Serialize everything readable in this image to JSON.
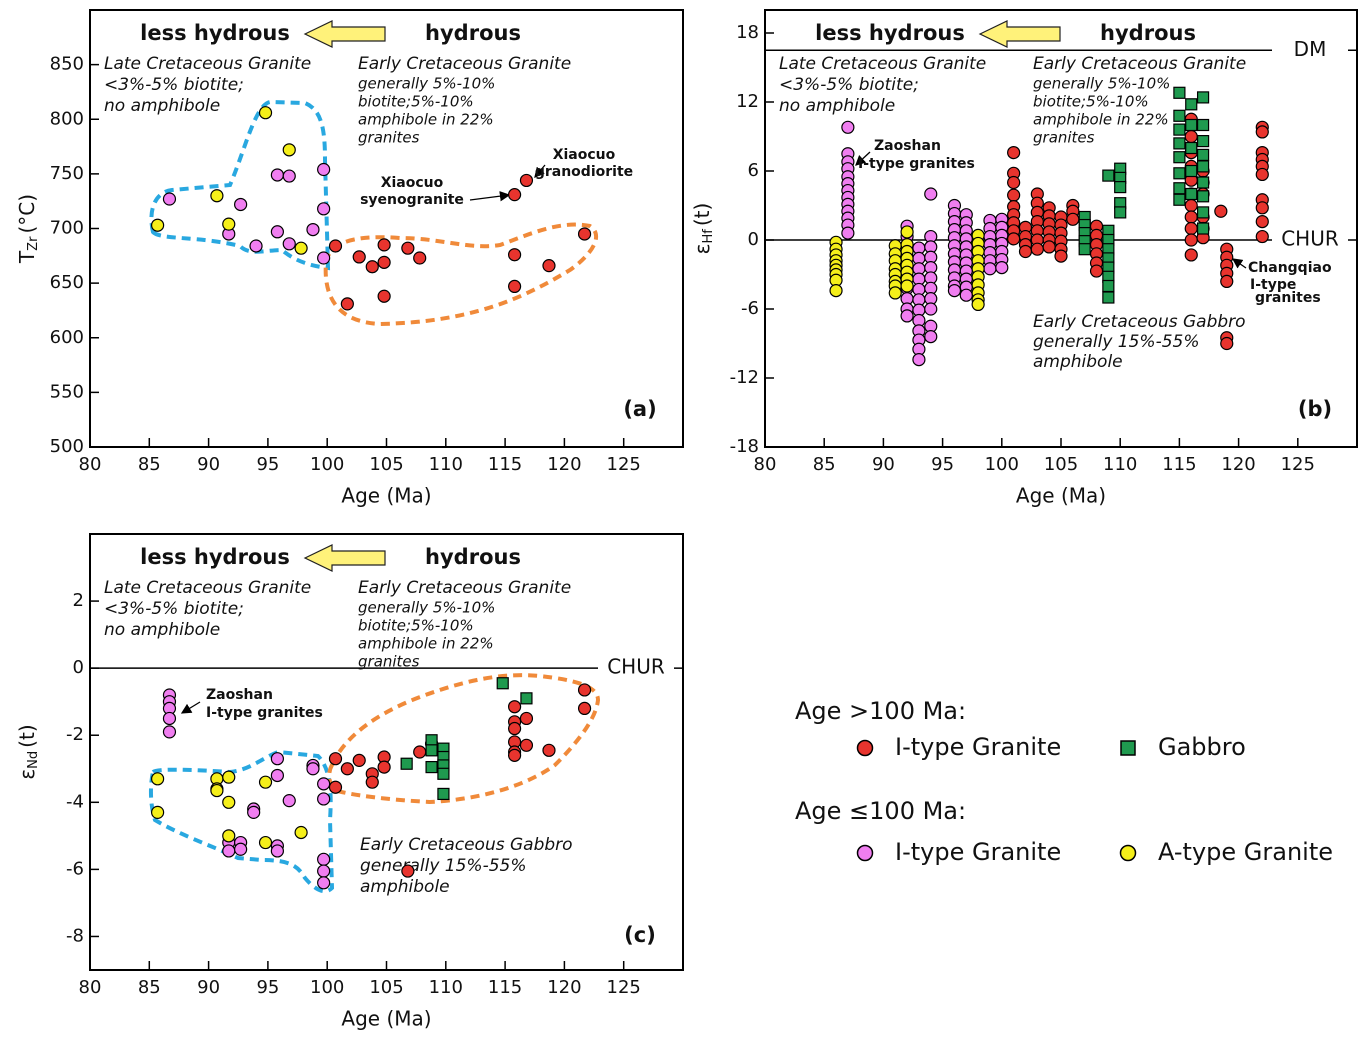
{
  "chart_data": [
    {
      "type": "scatter",
      "panel_label": "(a)",
      "xlabel": "Age (Ma)",
      "ylabel": {
        "symbol": "T",
        "subscript": "Zr",
        "unit": "(°C)"
      },
      "xlim": [
        80,
        130
      ],
      "xticks": [
        80,
        85,
        90,
        95,
        100,
        105,
        110,
        115,
        120,
        125
      ],
      "ylim": [
        500,
        900
      ],
      "yticks": [
        500,
        550,
        600,
        650,
        700,
        750,
        800,
        850
      ],
      "annotations": [
        "less hydrous",
        "hydrous",
        "Late Cretaceous Granite",
        "<3%-5% biotite;",
        "no amphibole",
        "Early Cretaceous Granite",
        "generally 5%-10%",
        "biotite;5%-10%",
        "amphibole in 22%",
        "granites",
        "Xiaocuo",
        "granodiorite",
        "Xiaocuo",
        "syenogranite"
      ],
      "series": [
        {
          "name": "I-type Granite",
          "group": "Age >100 Ma:",
          "marker": "circle",
          "color": "#e8342e",
          "x": [
            100.7,
            101.7,
            102.7,
            103.8,
            104.8,
            104.8,
            104.8,
            106.8,
            107.8,
            115.8,
            116.8,
            115.8,
            115.8,
            118.7,
            121.7
          ],
          "values": [
            684,
            631,
            674,
            665,
            685,
            669,
            638,
            682,
            673,
            731,
            744,
            676,
            647,
            666,
            695
          ]
        },
        {
          "name": "Gabbro",
          "group": "Age >100 Ma:",
          "marker": "square",
          "color": "#1f9a4f",
          "x": [],
          "values": []
        },
        {
          "name": "I-type Granite",
          "group": "Age ≤100 Ma:",
          "marker": "circle",
          "color": "#f07ef0",
          "x": [
            86.7,
            91.7,
            92.7,
            94,
            95.8,
            96.8,
            95.8,
            96.8,
            98.8,
            99.7,
            99.7,
            99.7
          ],
          "values": [
            727,
            695,
            722,
            684,
            749,
            748,
            697,
            686,
            699,
            754,
            718,
            673
          ]
        },
        {
          "name": "A-type Granite",
          "group": "Age ≤100 Ma:",
          "marker": "circle",
          "color": "#f5ef1a",
          "x": [
            85.7,
            90.7,
            91.7,
            94.8,
            96.8,
            97.8
          ],
          "values": [
            703,
            730,
            704,
            806,
            772,
            682
          ]
        }
      ]
    },
    {
      "type": "scatter",
      "panel_label": "(b)",
      "xlabel": "Age (Ma)",
      "ylabel": {
        "symbol": "ε",
        "subscript": "Hf",
        "unit": "(t)"
      },
      "xlim": [
        80,
        130
      ],
      "xticks": [
        80,
        85,
        90,
        95,
        100,
        105,
        110,
        115,
        120,
        125
      ],
      "ylim": [
        -18,
        20
      ],
      "yticks": [
        -18,
        -12,
        -6,
        0,
        6,
        12,
        18
      ],
      "ref_lines": [
        {
          "value": 16.5,
          "label": "DM"
        },
        {
          "value": 0,
          "label": "CHUR"
        }
      ],
      "annotations": [
        "less hydrous",
        "hydrous",
        "Late Cretaceous Granite",
        "<3%-5% biotite;",
        "no amphibole",
        "Early Cretaceous Granite",
        "generally 5%-10%",
        "biotite;5%-10%",
        "amphibole in 22%",
        "granites",
        "Zaoshan",
        "I-type granites",
        "Changqiao",
        "I-type",
        "granites",
        "Early Cretaceous Gabbro",
        "generally 15%-55%",
        "amphibole"
      ],
      "series": [
        {
          "marker": "circle",
          "color": "#e8342e",
          "x": [
            101,
            101,
            101,
            101,
            101,
            101,
            101,
            101,
            101,
            102,
            102,
            102,
            102,
            103,
            103,
            103,
            103,
            103,
            103,
            103,
            104,
            104,
            104,
            104,
            104,
            104,
            105,
            105,
            105,
            105,
            105,
            105,
            106,
            106,
            106,
            108,
            108,
            108,
            108,
            108,
            108,
            116,
            116,
            116,
            116,
            116,
            116,
            116,
            116,
            116,
            116,
            116,
            117,
            117,
            117,
            117,
            117,
            117,
            118.5,
            119,
            119,
            119,
            119,
            119,
            119,
            119,
            122,
            122,
            122,
            122,
            122,
            122,
            122,
            122,
            122,
            122
          ],
          "values": [
            7.6,
            5.8,
            5.0,
            3.9,
            2.9,
            2.2,
            1.5,
            0.8,
            0.1,
            1.1,
            0.3,
            -0.4,
            -1.0,
            4.0,
            3.2,
            2.4,
            1.6,
            0.8,
            0.0,
            -0.8,
            2.8,
            2.1,
            1.4,
            0.7,
            0.0,
            -0.6,
            2.0,
            1.3,
            0.6,
            -0.1,
            -0.8,
            -1.4,
            3.0,
            2.5,
            1.8,
            1.2,
            0.4,
            -0.4,
            -1.2,
            -2.0,
            -2.7,
            10.5,
            9.0,
            7.6,
            6.4,
            5.2,
            4.0,
            3.0,
            2.0,
            1.0,
            0.0,
            -1.3,
            6.0,
            5.0,
            4.0,
            2.0,
            1.0,
            0.2,
            2.5,
            -0.8,
            -1.5,
            -2.2,
            -2.9,
            -3.6,
            -8.5,
            -9.0,
            9.8,
            9.4,
            7.6,
            7.0,
            6.4,
            5.7,
            3.5,
            2.8,
            1.6,
            0.3
          ]
        },
        {
          "marker": "square",
          "color": "#1f9a4f",
          "x": [
            107,
            107,
            107,
            107,
            107,
            109,
            109,
            109,
            109,
            109,
            109,
            109,
            109,
            109,
            110,
            110,
            110,
            110,
            110,
            115,
            115,
            115,
            115,
            115,
            115,
            115,
            115,
            116,
            116,
            116,
            116,
            116,
            117,
            117,
            117,
            117,
            117,
            117,
            117,
            117,
            117
          ],
          "values": [
            2.0,
            1.3,
            0.6,
            -0.1,
            -0.8,
            5.6,
            0.8,
            0.0,
            -0.8,
            -1.6,
            -2.4,
            -3.2,
            -4.0,
            -5.0,
            6.2,
            5.4,
            4.6,
            3.2,
            2.4,
            12.8,
            10.8,
            9.6,
            8.4,
            7.2,
            5.8,
            4.5,
            3.5,
            11.8,
            10.0,
            8.0,
            6.0,
            4.0,
            12.4,
            10.0,
            8.6,
            7.4,
            6.4,
            5.0,
            3.8,
            2.4,
            1.0
          ]
        },
        {
          "marker": "circle",
          "color": "#f07ef0",
          "x": [
            87,
            87,
            87,
            87,
            87,
            87,
            87,
            87,
            87,
            87,
            87,
            87,
            87,
            92,
            92,
            92,
            92,
            92,
            92,
            92,
            92,
            92,
            92,
            93,
            93,
            93,
            93,
            93,
            93,
            93,
            93,
            93,
            93,
            93,
            93,
            94,
            94,
            94,
            94,
            94,
            94,
            94,
            94,
            94,
            94,
            94,
            96,
            96,
            96,
            96,
            96,
            96,
            96,
            96,
            96,
            96,
            96,
            96,
            97,
            97,
            97,
            97,
            97,
            97,
            97,
            97,
            97,
            97,
            97,
            99,
            99,
            99,
            99,
            99,
            99,
            99,
            100,
            100,
            100,
            100,
            100,
            100,
            100
          ],
          "values": [
            9.8,
            7.5,
            6.8,
            6.2,
            5.5,
            4.9,
            4.3,
            3.7,
            3.1,
            2.5,
            1.9,
            1.3,
            0.6,
            1.2,
            0.3,
            -0.6,
            -1.5,
            -2.4,
            -3.3,
            -4.2,
            -5.1,
            -6.0,
            -6.6,
            -0.7,
            -1.6,
            -2.5,
            -3.4,
            -4.3,
            -5.2,
            -6.1,
            -7.0,
            -7.9,
            -8.7,
            -9.5,
            -10.4,
            4.0,
            0.3,
            -0.6,
            -1.5,
            -2.4,
            -3.3,
            -4.2,
            -5.1,
            -6.0,
            -7.5,
            -8.4,
            3.0,
            2.3,
            1.6,
            0.9,
            0.2,
            -0.5,
            -1.2,
            -1.9,
            -2.6,
            -3.3,
            -4.0,
            -4.4,
            2.2,
            1.5,
            0.8,
            0.1,
            -0.6,
            -1.3,
            -2.0,
            -2.7,
            -3.4,
            -4.1,
            -4.8,
            1.7,
            1.0,
            0.3,
            -0.4,
            -1.1,
            -1.8,
            -2.5,
            1.8,
            1.1,
            0.4,
            -0.3,
            -1.0,
            -1.7,
            -2.4
          ]
        },
        {
          "marker": "circle",
          "color": "#f5ef1a",
          "x": [
            86,
            86,
            86,
            86,
            86,
            86,
            86,
            86,
            86,
            91,
            91,
            91,
            91,
            91,
            91,
            91,
            91,
            92,
            92,
            92,
            92,
            92,
            92,
            92,
            92,
            98,
            98,
            98,
            98,
            98,
            98,
            98,
            98,
            98,
            98
          ],
          "values": [
            -0.2,
            -0.8,
            -1.3,
            -1.8,
            -2.2,
            -2.6,
            -3.0,
            -3.5,
            -4.4,
            -0.5,
            -1.2,
            -1.8,
            -2.5,
            -3.0,
            -3.6,
            -4.0,
            -4.6,
            0.7,
            -0.4,
            -1.0,
            -1.6,
            -2.2,
            -2.8,
            -3.4,
            -4.0,
            0.4,
            -0.3,
            -1.0,
            -1.8,
            -2.5,
            -3.2,
            -3.9,
            -4.6,
            -5.2,
            -5.6
          ]
        }
      ]
    },
    {
      "type": "scatter",
      "panel_label": "(c)",
      "xlabel": "Age (Ma)",
      "ylabel": {
        "symbol": "ε",
        "subscript": "Nd",
        "unit": "(t)"
      },
      "xlim": [
        80,
        130
      ],
      "xticks": [
        80,
        85,
        90,
        95,
        100,
        105,
        110,
        115,
        120,
        125
      ],
      "ylim": [
        -9,
        4
      ],
      "yticks": [
        -8,
        -6,
        -4,
        -2,
        0,
        2
      ],
      "ref_lines": [
        {
          "value": 0,
          "label": "CHUR"
        }
      ],
      "annotations": [
        "less hydrous",
        "hydrous",
        "Late Cretaceous Granite",
        "<3%-5% biotite;",
        "no amphibole",
        "Early Cretaceous Granite",
        "generally 5%-10%",
        "biotite;5%-10%",
        "amphibole in 22%",
        "granites",
        "Zaoshan",
        "I-type granites",
        "Early Cretaceous Gabbro",
        "generally 15%-55%",
        "amphibole"
      ],
      "series": [
        {
          "marker": "circle",
          "color": "#e8342e",
          "x": [
            100.7,
            100.7,
            101.7,
            102.7,
            103.8,
            103.8,
            104.8,
            104.8,
            106.8,
            107.8,
            108.8,
            115.8,
            115.8,
            115.8,
            115.8,
            115.8,
            115.8,
            116.8,
            116.8,
            118.7,
            121.7,
            121.7
          ],
          "values": [
            -2.7,
            -3.55,
            -3.0,
            -2.75,
            -3.15,
            -3.4,
            -2.65,
            -2.95,
            -6.05,
            -2.5,
            -2.25,
            -1.15,
            -1.6,
            -1.8,
            -2.2,
            -2.5,
            -2.6,
            -1.5,
            -2.3,
            -2.45,
            -0.65,
            -1.2
          ]
        },
        {
          "marker": "square",
          "color": "#1f9a4f",
          "x": [
            106.7,
            108.8,
            108.8,
            108.8,
            109.8,
            109.8,
            109.8,
            109.8,
            109.8,
            114.8,
            116.8
          ],
          "values": [
            -2.85,
            -2.15,
            -2.45,
            -2.95,
            -2.4,
            -2.65,
            -2.9,
            -3.15,
            -3.75,
            -0.45,
            -0.9
          ]
        },
        {
          "marker": "circle",
          "color": "#f07ef0",
          "x": [
            86.7,
            86.7,
            86.7,
            86.7,
            86.7,
            91.7,
            91.7,
            92.7,
            92.7,
            93.8,
            93.8,
            95.8,
            95.8,
            95.8,
            95.8,
            96.8,
            98.8,
            98.8,
            99.7,
            99.7,
            99.7,
            99.7,
            99.7
          ],
          "values": [
            -0.8,
            -1.0,
            -1.2,
            -1.5,
            -1.9,
            -5.2,
            -5.45,
            -5.2,
            -5.4,
            -4.2,
            -4.3,
            -2.7,
            -3.2,
            -5.3,
            -5.45,
            -3.95,
            -2.9,
            -3.0,
            -3.45,
            -3.9,
            -5.7,
            -6.05,
            -6.4
          ]
        },
        {
          "marker": "circle",
          "color": "#f5ef1a",
          "x": [
            85.7,
            85.7,
            90.7,
            90.7,
            90.7,
            91.7,
            91.7,
            91.7,
            94.8,
            94.8,
            97.8
          ],
          "values": [
            -3.3,
            -4.3,
            -3.3,
            -3.6,
            -3.65,
            -3.25,
            -4.0,
            -5.0,
            -3.4,
            -5.2,
            -4.9
          ]
        }
      ]
    }
  ]
}
